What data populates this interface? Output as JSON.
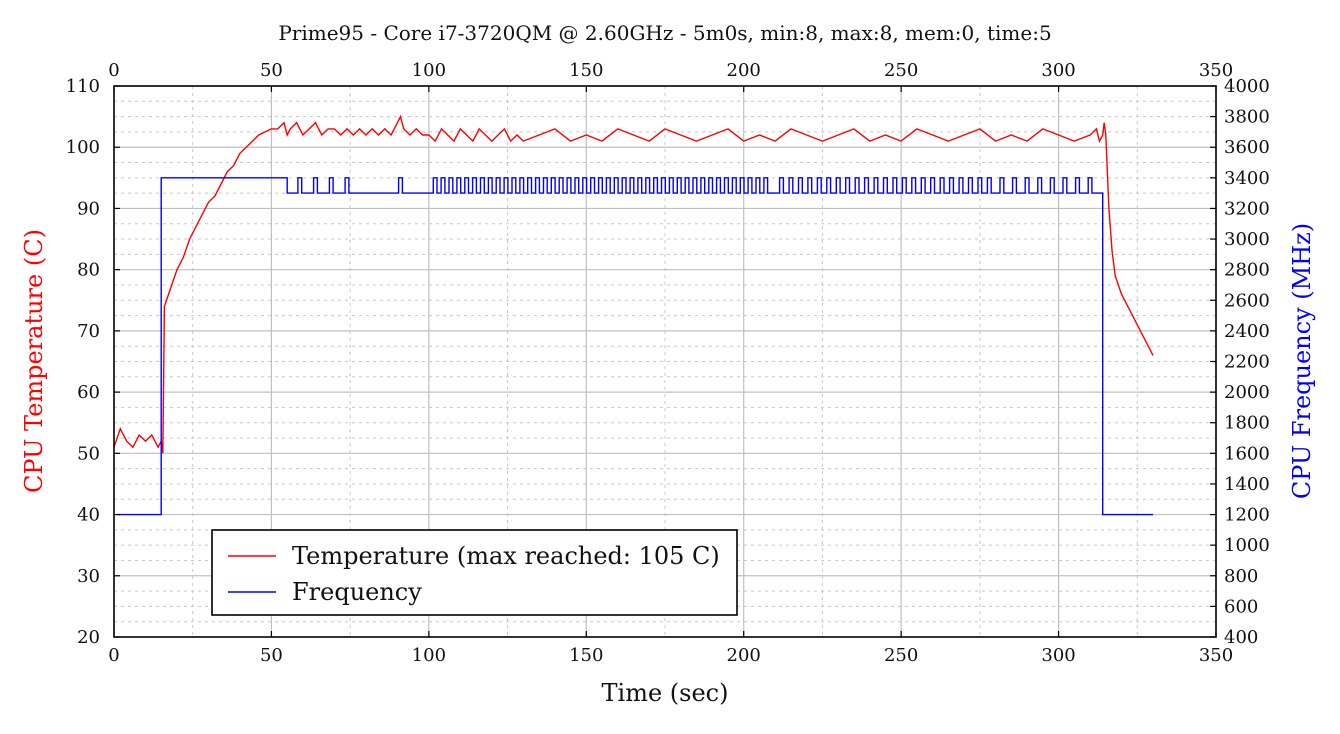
{
  "chart_data": {
    "type": "line",
    "title": "Prime95 - Core i7-3720QM @ 2.60GHz - 5m0s, min:8, max:8, mem:0, time:5",
    "xlabel": "Time (sec)",
    "ylabel_left": "CPU Temperature (C)",
    "ylabel_right": "CPU Frequency (MHz)",
    "xlim": [
      0,
      350
    ],
    "ylim_left": [
      20,
      110
    ],
    "ylim_right": [
      400,
      4000
    ],
    "x_ticks": [
      "0",
      "50",
      "100",
      "150",
      "200",
      "250",
      "300",
      "350"
    ],
    "y_left_ticks": [
      "20",
      "30",
      "40",
      "50",
      "60",
      "70",
      "80",
      "90",
      "100",
      "110"
    ],
    "y_right_ticks": [
      "400",
      "600",
      "800",
      "1000",
      "1200",
      "1400",
      "1600",
      "1800",
      "2000",
      "2200",
      "2400",
      "2600",
      "2800",
      "3000",
      "3200",
      "3400",
      "3600",
      "3800",
      "4000"
    ],
    "grid": true,
    "legend_position": "bottom-left",
    "colors": {
      "temperature": "#ff0000",
      "frequency": "#0000ff"
    },
    "series": [
      {
        "name": "Temperature (max reached: 105 C)",
        "axis": "left",
        "x": [
          0,
          2,
          4,
          6,
          8,
          10,
          12,
          14,
          15,
          15.5,
          16,
          18,
          20,
          22,
          24,
          26,
          28,
          30,
          32,
          34,
          36,
          38,
          40,
          42,
          44,
          46,
          48,
          50,
          52,
          54,
          55,
          56,
          58,
          60,
          62,
          64,
          66,
          68,
          70,
          72,
          74,
          76,
          78,
          80,
          82,
          84,
          86,
          88,
          90,
          91,
          92,
          94,
          96,
          98,
          100,
          102,
          104,
          106,
          108,
          110,
          112,
          114,
          116,
          118,
          120,
          122,
          124,
          126,
          128,
          130,
          135,
          140,
          145,
          150,
          155,
          160,
          165,
          170,
          175,
          180,
          185,
          190,
          195,
          200,
          205,
          210,
          215,
          220,
          225,
          230,
          235,
          240,
          245,
          250,
          255,
          260,
          265,
          270,
          275,
          280,
          285,
          290,
          295,
          300,
          305,
          310,
          312,
          313,
          314,
          314.5,
          315,
          316,
          317,
          318,
          320,
          322,
          324,
          326,
          328,
          330
        ],
        "values": [
          51,
          54,
          52,
          51,
          53,
          52,
          53,
          51,
          52,
          50,
          74,
          77,
          80,
          82,
          85,
          87,
          89,
          91,
          92,
          94,
          96,
          97,
          99,
          100,
          101,
          102,
          102.5,
          103,
          103,
          104,
          102,
          103,
          104,
          102,
          103,
          104,
          102,
          103,
          103,
          102,
          103,
          102,
          103,
          102,
          103,
          102,
          103,
          102,
          104,
          105,
          103,
          102,
          103,
          102,
          102,
          101,
          103,
          102,
          101,
          103,
          102,
          101,
          103,
          102,
          101,
          102,
          103,
          101,
          102,
          101,
          102,
          103,
          101,
          102,
          101,
          103,
          102,
          101,
          103,
          102,
          101,
          102,
          103,
          101,
          102,
          101,
          103,
          102,
          101,
          102,
          103,
          101,
          102,
          101,
          103,
          102,
          101,
          102,
          103,
          101,
          102,
          101,
          103,
          102,
          101,
          102,
          103,
          101,
          102,
          104,
          102,
          90,
          83,
          79,
          76,
          74,
          72,
          70,
          68,
          66
        ]
      },
      {
        "name": "Frequency",
        "axis": "right",
        "x": [
          1,
          15,
          15,
          55,
          55,
          330,
          314,
          314,
          330
        ],
        "values": [
          1200,
          1200,
          3400,
          3400,
          3300,
          3300,
          3300,
          1200,
          1200
        ]
      }
    ]
  }
}
